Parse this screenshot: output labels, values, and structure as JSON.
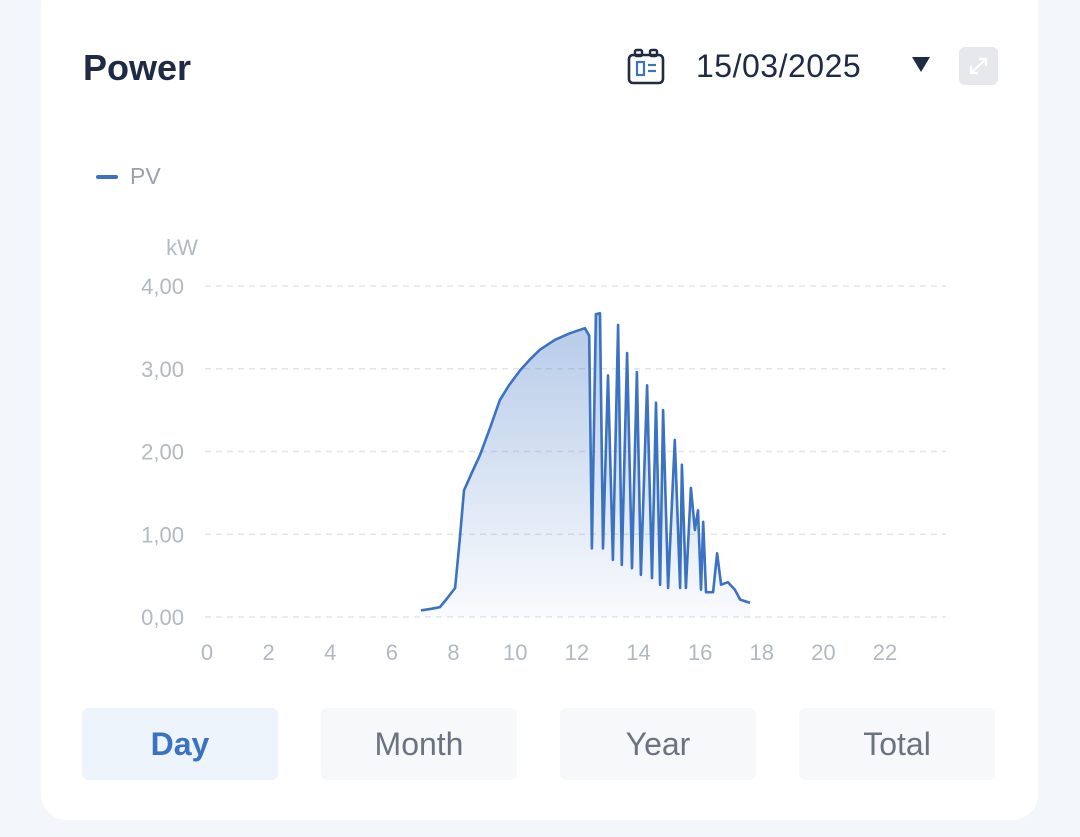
{
  "header": {
    "title": "Power",
    "date": "15/03/2025"
  },
  "colors": {
    "accent": "#3b72c2",
    "grid": "#e3e6ea",
    "tick": "#b3b9c2"
  },
  "tabs": [
    {
      "label": "Day",
      "active": true
    },
    {
      "label": "Month"
    },
    {
      "label": "Year"
    },
    {
      "label": "Total"
    }
  ],
  "chart_data": {
    "type": "area",
    "title": "",
    "ylabel": "kW",
    "xlabel": "",
    "legend": [
      {
        "name": "PV",
        "position": "top-left"
      }
    ],
    "xlim": [
      0,
      23.5
    ],
    "ylim": [
      0,
      4
    ],
    "xticks": [
      "0",
      "2",
      "4",
      "6",
      "8",
      "10",
      "12",
      "14",
      "16",
      "18",
      "20",
      "22"
    ],
    "yticks": [
      "0,00",
      "1,00",
      "2,00",
      "3,00",
      "4,00"
    ],
    "series": [
      {
        "name": "PV",
        "x": [
          6.94,
          7.3,
          7.56,
          7.8,
          8.05,
          8.2,
          8.34,
          8.6,
          8.86,
          9.2,
          9.5,
          9.8,
          10.16,
          10.5,
          10.8,
          11.29,
          11.78,
          12.26,
          12.4,
          12.49,
          12.62,
          12.75,
          12.85,
          13.01,
          13.17,
          13.34,
          13.46,
          13.63,
          13.79,
          13.95,
          14.08,
          14.28,
          14.44,
          14.57,
          14.7,
          14.8,
          14.96,
          15.18,
          15.35,
          15.41,
          15.54,
          15.7,
          15.83,
          15.93,
          16.03,
          16.1,
          16.19,
          16.42,
          16.55,
          16.68,
          16.9,
          17.13,
          17.3,
          17.62
        ],
        "y": [
          0.08,
          0.1,
          0.12,
          0.23,
          0.35,
          0.93,
          1.53,
          1.75,
          1.96,
          2.3,
          2.62,
          2.8,
          2.98,
          3.12,
          3.23,
          3.35,
          3.43,
          3.49,
          3.4,
          0.83,
          3.66,
          3.67,
          0.83,
          2.92,
          0.69,
          3.53,
          0.63,
          3.19,
          0.59,
          2.96,
          0.51,
          2.8,
          0.47,
          2.59,
          0.39,
          2.5,
          0.35,
          2.14,
          0.35,
          1.84,
          0.35,
          1.56,
          1.05,
          1.29,
          0.33,
          1.15,
          0.3,
          0.3,
          0.77,
          0.39,
          0.42,
          0.33,
          0.21,
          0.17
        ]
      }
    ]
  }
}
